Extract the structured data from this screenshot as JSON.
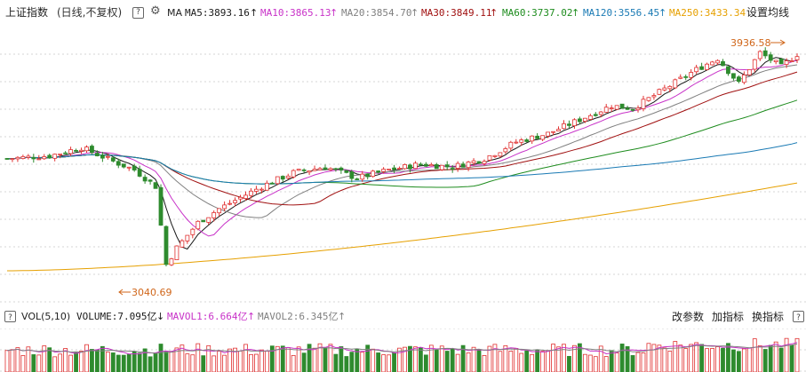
{
  "header": {
    "title": "上证指数",
    "period": "(日线,不复权)",
    "help_glyph": "?",
    "ma_label": "MA",
    "settings_label": "设置均线"
  },
  "ma_items": [
    {
      "label": "MA5:3893.16",
      "arrow": "↑",
      "color": "#1a1a1a",
      "arrow_color": "#1a1a1a"
    },
    {
      "label": "MA10:3865.13",
      "arrow": "↑",
      "color": "#c832c8",
      "arrow_color": "#c832c8"
    },
    {
      "label": "MA20:3854.70",
      "arrow": "↑",
      "color": "#808080",
      "arrow_color": "#808080"
    },
    {
      "label": "MA30:3849.11",
      "arrow": "↑",
      "color": "#a01010",
      "arrow_color": "#a01010"
    },
    {
      "label": "MA60:3737.02",
      "arrow": "↑",
      "color": "#1e8c1e",
      "arrow_color": "#1e8c1e"
    },
    {
      "label": "MA120:3556.45",
      "arrow": "↑",
      "color": "#1a7ab4",
      "arrow_color": "#1a7ab4"
    },
    {
      "label": "MA250:3433.34",
      "arrow": "",
      "color": "#e6a000",
      "arrow_color": "#e6a000"
    }
  ],
  "price": {
    "high_label": "3936.58",
    "low_label": "3040.69",
    "high": 3936.58,
    "low": 3040.69
  },
  "volume": {
    "label": "VOL(5,10)",
    "items": [
      {
        "label": "VOLUME:7.095亿",
        "arrow": "↓",
        "color": "#1a1a1a"
      },
      {
        "label": "MAVOL1:6.664亿",
        "arrow": "↑",
        "color": "#c832c8"
      },
      {
        "label": "MAVOL2:6.345亿",
        "arrow": "↑",
        "color": "#808080"
      }
    ],
    "help_glyph": "?"
  },
  "toolbar": {
    "param_label": "改参数",
    "add_label": "加指标",
    "switch_label": "换指标",
    "help_glyph": "?"
  },
  "colors": {
    "up": "#e03030",
    "down": "#2e8b2e",
    "grid": "#c8c8c8"
  }
}
